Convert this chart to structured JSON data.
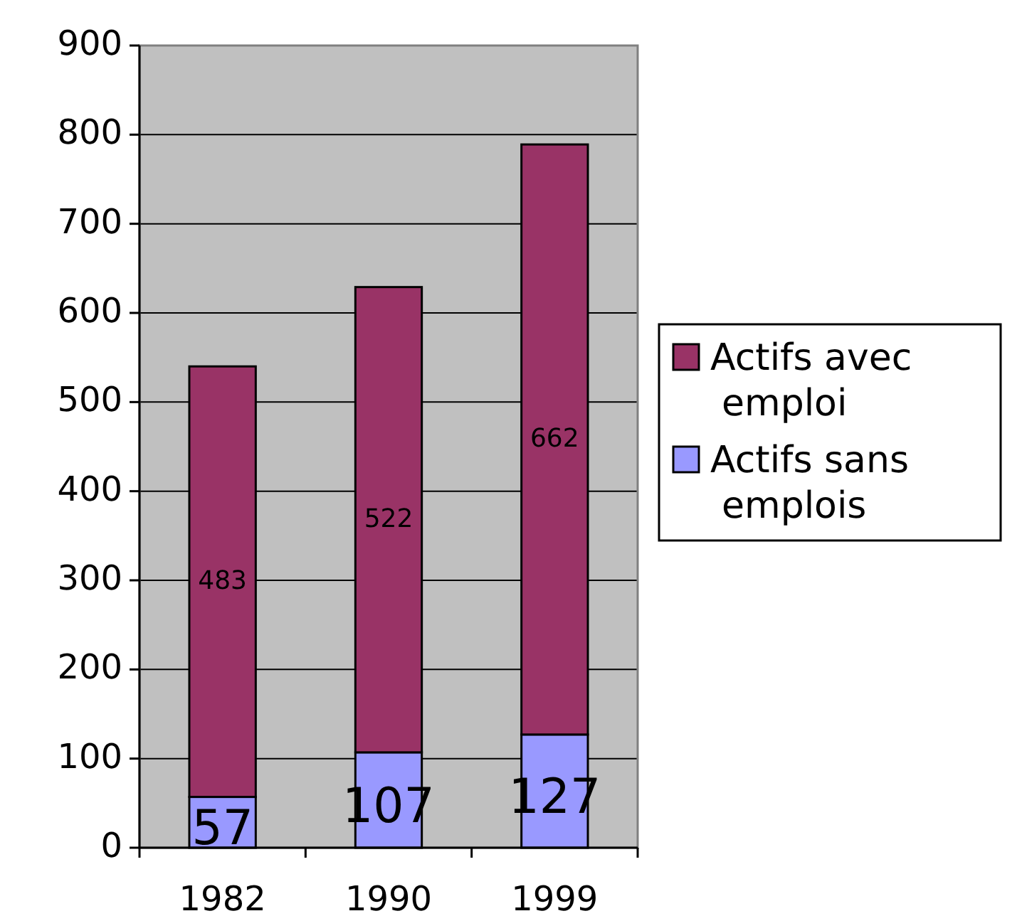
{
  "chart_data": {
    "type": "bar",
    "stacked": true,
    "categories": [
      "1982",
      "1990",
      "1999"
    ],
    "series": [
      {
        "name": "Actifs sans emplois",
        "color": "#9999ff",
        "values": [
          57,
          107,
          127
        ]
      },
      {
        "name": "Actifs avec emploi",
        "color": "#993366",
        "values": [
          483,
          522,
          662
        ]
      }
    ],
    "ylim": [
      0,
      900
    ],
    "yticks": [
      0,
      100,
      200,
      300,
      400,
      500,
      600,
      700,
      800,
      900
    ],
    "grid": "y",
    "legend": "right",
    "data_labels": true
  }
}
